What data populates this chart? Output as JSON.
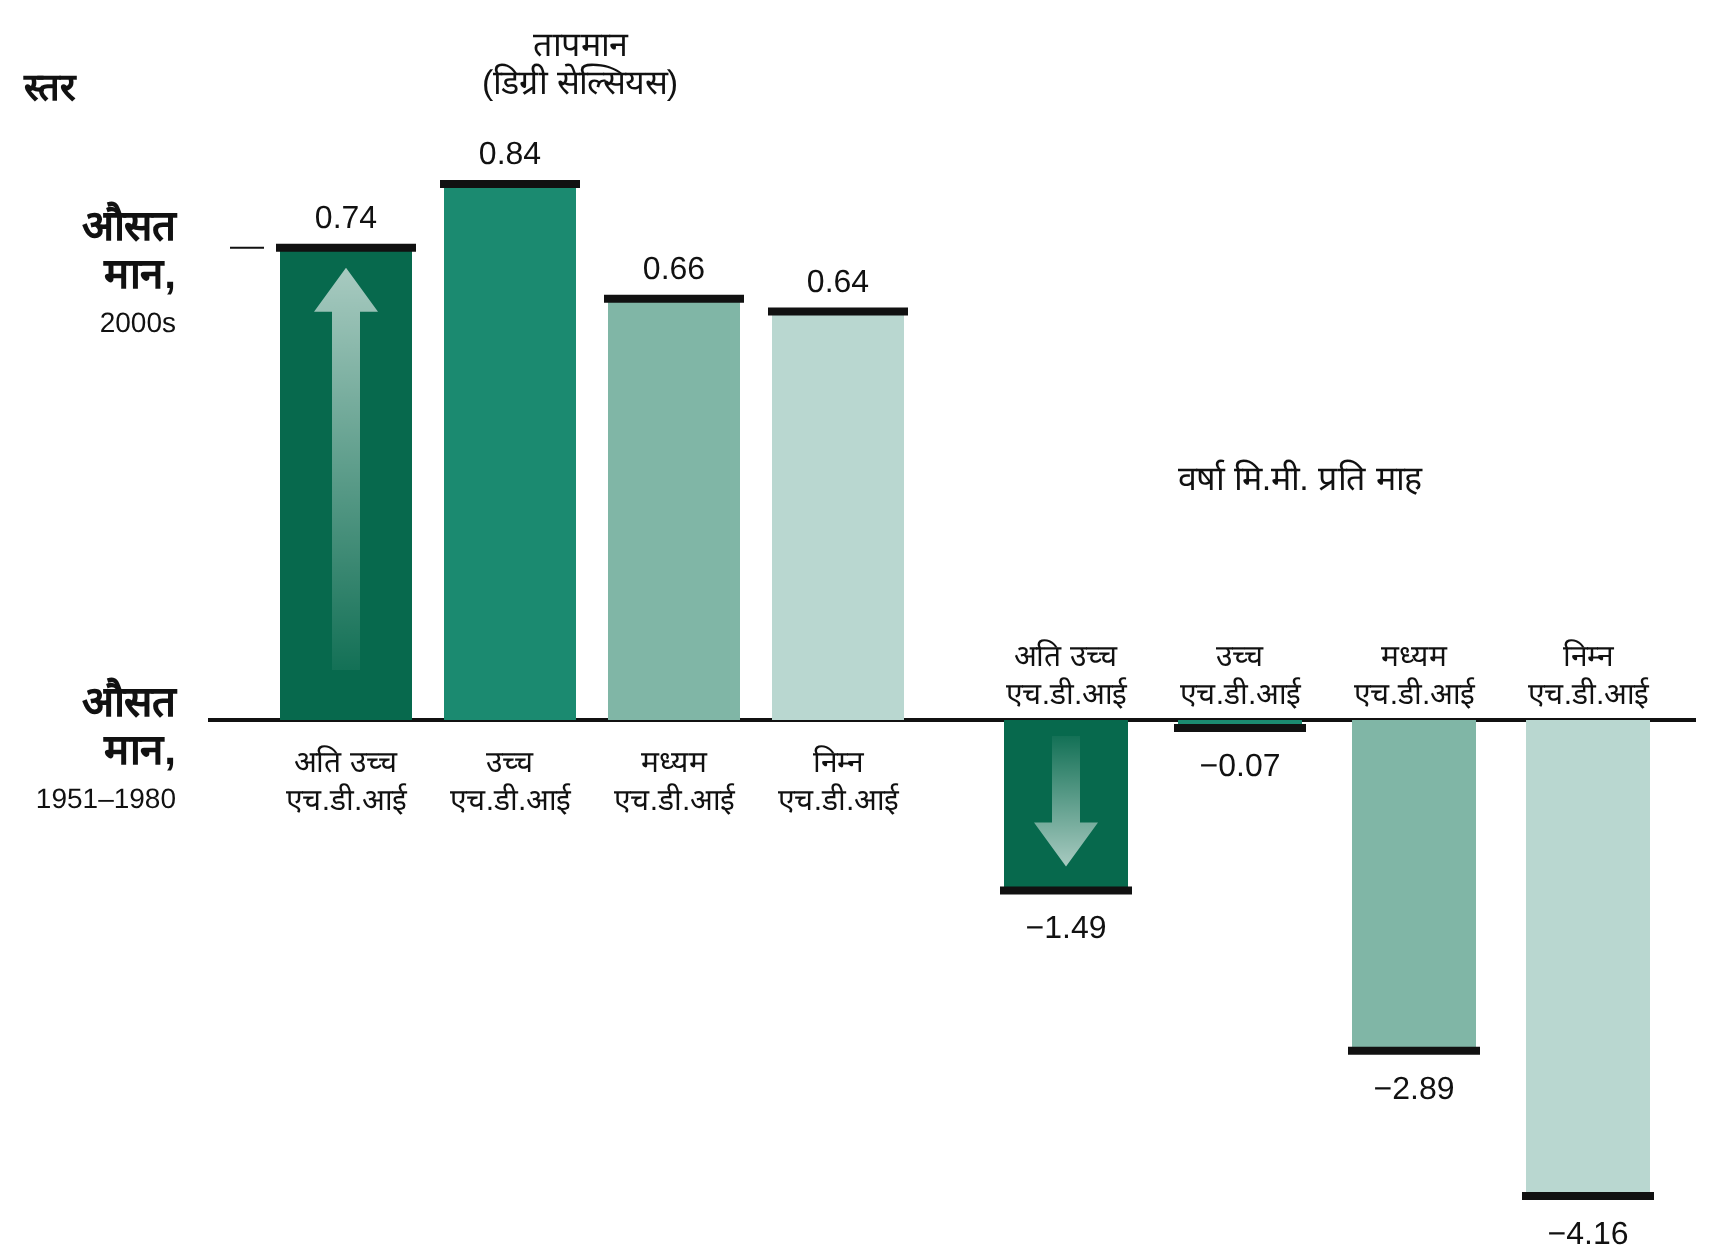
{
  "chart_data": [
    {
      "type": "bar",
      "title": "तापमान (डिग्री सेल्सियस)",
      "ylabel": "स्तर",
      "categories": [
        "अति उच्च एच.डी.आई",
        "उच्च एच.डी.आई",
        "मध्यम एच.डी.आई",
        "निम्न एच.डी.आई"
      ],
      "values": [
        0.74,
        0.84,
        0.66,
        0.64
      ],
      "colors": [
        "#07694d",
        "#1b8a70",
        "#80b6a6",
        "#b9d7d0"
      ],
      "data_labels": true,
      "annotations": [
        "औसत मान, 2000s",
        "औसत मान, 1951–1980"
      ]
    },
    {
      "type": "bar",
      "title": "वर्षा मि.मी. प्रति माह",
      "categories": [
        "अति उच्च एच.डी.आई",
        "उच्च एच.डी.आई",
        "मध्यम एच.डी.आई",
        "निम्न एच.डी.आई"
      ],
      "values": [
        -1.49,
        -0.07,
        -2.89,
        -4.16
      ],
      "colors": [
        "#07694d",
        "#1b8a70",
        "#80b6a6",
        "#b9d7d0"
      ],
      "data_labels": true
    }
  ]
}
